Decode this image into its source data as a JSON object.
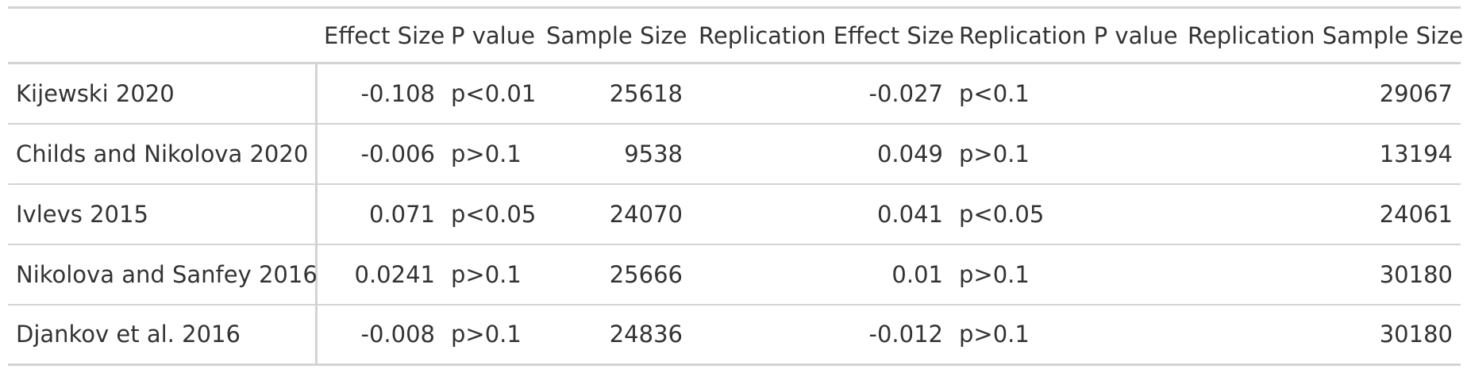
{
  "table": {
    "stub_header": "",
    "columns": [
      "Effect Size",
      "P value",
      "Sample Size",
      "Replication Effect Size",
      "Replication P value",
      "Replication Sample Size"
    ],
    "rows": [
      {
        "study": "Kijewski 2020",
        "effect_size": "-0.108",
        "p_value": "p<0.01",
        "sample_size": "25618",
        "rep_effect_size": "-0.027",
        "rep_p_value": "p<0.1",
        "rep_sample_size": "29067"
      },
      {
        "study": "Childs and Nikolova 2020",
        "effect_size": "-0.006",
        "p_value": "p>0.1",
        "sample_size": "9538",
        "rep_effect_size": "0.049",
        "rep_p_value": "p>0.1",
        "rep_sample_size": "13194"
      },
      {
        "study": "Ivlevs 2015",
        "effect_size": "0.071",
        "p_value": "p<0.05",
        "sample_size": "24070",
        "rep_effect_size": "0.041",
        "rep_p_value": "p<0.05",
        "rep_sample_size": "24061"
      },
      {
        "study": "Nikolova and Sanfey 2016",
        "effect_size": "0.0241",
        "p_value": "p>0.1",
        "sample_size": "25666",
        "rep_effect_size": "0.01",
        "rep_p_value": "p>0.1",
        "rep_sample_size": "30180"
      },
      {
        "study": "Djankov et al. 2016",
        "effect_size": "-0.008",
        "p_value": "p>0.1",
        "sample_size": "24836",
        "rep_effect_size": "-0.012",
        "rep_p_value": "p>0.1",
        "rep_sample_size": "30180"
      }
    ]
  }
}
